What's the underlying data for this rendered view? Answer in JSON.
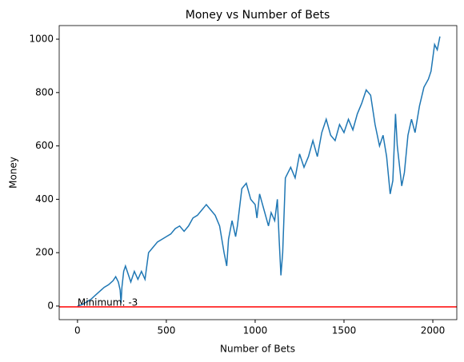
{
  "chart_data": {
    "type": "line",
    "title": "Money vs Number of Bets",
    "x_label": "Number of Bets",
    "y_label": "Money",
    "x": [
      0,
      25,
      50,
      75,
      100,
      125,
      150,
      175,
      200,
      215,
      230,
      240,
      245,
      250,
      260,
      270,
      285,
      300,
      320,
      340,
      360,
      380,
      390,
      400,
      425,
      450,
      475,
      500,
      525,
      550,
      575,
      600,
      625,
      650,
      675,
      700,
      725,
      750,
      775,
      800,
      815,
      825,
      840,
      850,
      870,
      890,
      900,
      925,
      950,
      975,
      1000,
      1010,
      1025,
      1050,
      1075,
      1090,
      1110,
      1125,
      1135,
      1145,
      1155,
      1170,
      1200,
      1225,
      1250,
      1275,
      1300,
      1325,
      1350,
      1375,
      1400,
      1425,
      1450,
      1475,
      1500,
      1525,
      1550,
      1575,
      1600,
      1625,
      1650,
      1675,
      1700,
      1720,
      1740,
      1760,
      1775,
      1790,
      1800,
      1825,
      1840,
      1860,
      1880,
      1900,
      1925,
      1950,
      1975,
      1990,
      2000,
      2010,
      2025,
      2040
    ],
    "values": [
      0,
      5,
      15,
      25,
      40,
      55,
      70,
      80,
      95,
      110,
      90,
      60,
      10,
      70,
      130,
      150,
      120,
      90,
      130,
      100,
      130,
      100,
      150,
      200,
      220,
      240,
      250,
      260,
      270,
      290,
      300,
      280,
      300,
      330,
      340,
      360,
      380,
      360,
      340,
      300,
      240,
      200,
      150,
      250,
      320,
      260,
      300,
      440,
      460,
      400,
      380,
      330,
      420,
      360,
      300,
      350,
      320,
      400,
      250,
      115,
      200,
      480,
      520,
      480,
      570,
      520,
      560,
      620,
      560,
      650,
      700,
      640,
      620,
      680,
      650,
      700,
      660,
      720,
      760,
      810,
      790,
      680,
      600,
      640,
      560,
      420,
      470,
      720,
      600,
      450,
      500,
      640,
      700,
      650,
      750,
      820,
      850,
      880,
      930,
      980,
      960,
      1010
    ],
    "color": "#1f77b4",
    "hline": {
      "value": -3,
      "color": "#ff0000"
    },
    "annotation": {
      "text": "Minimum: -3",
      "x": 0,
      "y": -3
    },
    "xlim": [
      -103,
      2135
    ],
    "ylim": [
      -51,
      1051
    ],
    "xticks": [
      0,
      500,
      1000,
      1500,
      2000
    ],
    "yticks": [
      0,
      200,
      400,
      600,
      800,
      1000
    ]
  }
}
